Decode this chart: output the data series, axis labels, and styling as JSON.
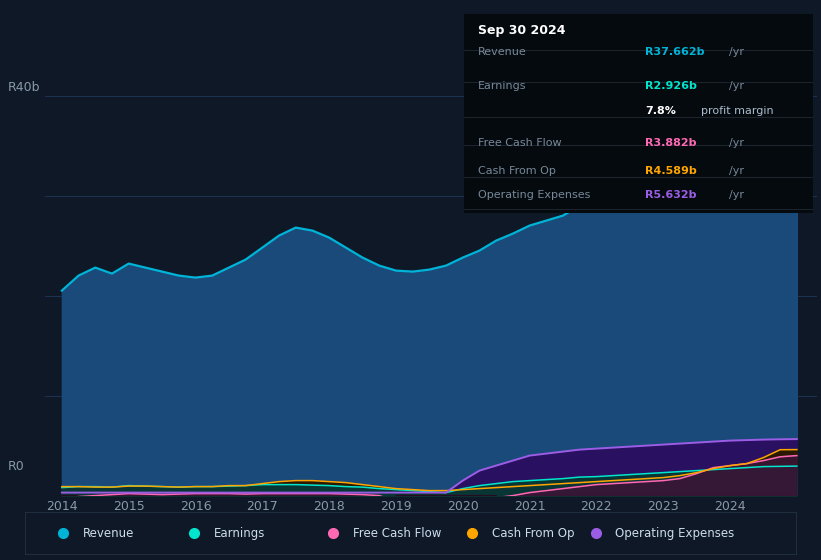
{
  "bg_color": "#0e1826",
  "plot_bg_color": "#0e1826",
  "chart_fill_color": "#0e3050",
  "grid_color": "#1c3352",
  "title_date": "Sep 30 2024",
  "ylabel_top": "R40b",
  "ylabel_bottom": "R0",
  "years": [
    2014.0,
    2014.25,
    2014.5,
    2014.75,
    2015.0,
    2015.25,
    2015.5,
    2015.75,
    2016.0,
    2016.25,
    2016.5,
    2016.75,
    2017.0,
    2017.25,
    2017.5,
    2017.75,
    2018.0,
    2018.25,
    2018.5,
    2018.75,
    2019.0,
    2019.25,
    2019.5,
    2019.75,
    2020.0,
    2020.25,
    2020.5,
    2020.75,
    2021.0,
    2021.25,
    2021.5,
    2021.75,
    2022.0,
    2022.25,
    2022.5,
    2022.75,
    2023.0,
    2023.25,
    2023.5,
    2023.75,
    2024.0,
    2024.25,
    2024.5,
    2024.75,
    2025.0
  ],
  "revenue": [
    20.5,
    22.0,
    22.8,
    22.2,
    23.2,
    22.8,
    22.4,
    22.0,
    21.8,
    22.0,
    22.8,
    23.6,
    24.8,
    26.0,
    26.8,
    26.5,
    25.8,
    24.8,
    23.8,
    23.0,
    22.5,
    22.4,
    22.6,
    23.0,
    23.8,
    24.5,
    25.5,
    26.2,
    27.0,
    27.5,
    28.0,
    29.0,
    30.0,
    30.5,
    31.0,
    32.0,
    33.5,
    35.0,
    36.0,
    36.8,
    37.0,
    37.4,
    37.8,
    37.662,
    37.7
  ],
  "earnings": [
    0.8,
    0.9,
    0.9,
    0.85,
    1.0,
    0.95,
    0.9,
    0.85,
    0.9,
    0.9,
    0.95,
    1.0,
    1.1,
    1.1,
    1.1,
    1.05,
    1.0,
    0.9,
    0.85,
    0.7,
    0.6,
    0.5,
    0.4,
    0.3,
    0.7,
    1.0,
    1.2,
    1.4,
    1.5,
    1.6,
    1.7,
    1.85,
    1.9,
    2.0,
    2.1,
    2.2,
    2.3,
    2.4,
    2.5,
    2.6,
    2.7,
    2.8,
    2.9,
    2.926,
    2.95
  ],
  "free_cash_flow": [
    -0.2,
    -0.1,
    0.0,
    0.1,
    0.2,
    0.15,
    0.1,
    0.15,
    0.2,
    0.2,
    0.2,
    0.15,
    0.2,
    0.2,
    0.2,
    0.2,
    0.2,
    0.15,
    0.1,
    0.0,
    -0.5,
    -0.8,
    -0.9,
    -1.0,
    -0.8,
    -0.4,
    -0.2,
    0.0,
    0.3,
    0.5,
    0.7,
    0.9,
    1.1,
    1.2,
    1.3,
    1.4,
    1.5,
    1.7,
    2.2,
    2.8,
    3.0,
    3.2,
    3.5,
    3.882,
    4.0
  ],
  "cash_from_op": [
    0.9,
    0.9,
    0.85,
    0.85,
    0.95,
    0.95,
    0.9,
    0.85,
    0.9,
    0.9,
    1.0,
    1.0,
    1.2,
    1.4,
    1.5,
    1.5,
    1.4,
    1.3,
    1.1,
    0.9,
    0.7,
    0.6,
    0.5,
    0.5,
    0.6,
    0.7,
    0.8,
    0.9,
    1.0,
    1.1,
    1.2,
    1.3,
    1.4,
    1.5,
    1.6,
    1.7,
    1.8,
    2.0,
    2.3,
    2.7,
    3.0,
    3.2,
    3.8,
    4.589,
    4.6
  ],
  "op_expenses": [
    0.3,
    0.3,
    0.3,
    0.3,
    0.3,
    0.3,
    0.3,
    0.3,
    0.3,
    0.3,
    0.3,
    0.3,
    0.3,
    0.3,
    0.3,
    0.3,
    0.3,
    0.3,
    0.3,
    0.3,
    0.3,
    0.3,
    0.3,
    0.3,
    1.5,
    2.5,
    3.0,
    3.5,
    4.0,
    4.2,
    4.4,
    4.6,
    4.7,
    4.8,
    4.9,
    5.0,
    5.1,
    5.2,
    5.3,
    5.4,
    5.5,
    5.55,
    5.6,
    5.632,
    5.65
  ],
  "revenue_color": "#00b4d8",
  "earnings_color": "#00e5cc",
  "fcf_color": "#ff69b4",
  "cop_color": "#ffa500",
  "opex_color": "#9b5de5",
  "revenue_fill": "#1a4a7a",
  "earnings_fill": "#0a3535",
  "fcf_fill_pos": "#3a1535",
  "fcf_fill_neg": "#2a0a20",
  "cop_fill": "#2a1800",
  "opex_fill": "#2a1060",
  "legend_items": [
    "Revenue",
    "Earnings",
    "Free Cash Flow",
    "Cash From Op",
    "Operating Expenses"
  ],
  "legend_colors": [
    "#00b4d8",
    "#00e5cc",
    "#ff69b4",
    "#ffa500",
    "#9b5de5"
  ],
  "xticks": [
    2014,
    2015,
    2016,
    2017,
    2018,
    2019,
    2020,
    2021,
    2022,
    2023,
    2024
  ],
  "yticks": [
    0,
    10,
    20,
    30,
    40
  ],
  "ylim": [
    0,
    42
  ],
  "xlim": [
    2013.75,
    2025.3
  ]
}
